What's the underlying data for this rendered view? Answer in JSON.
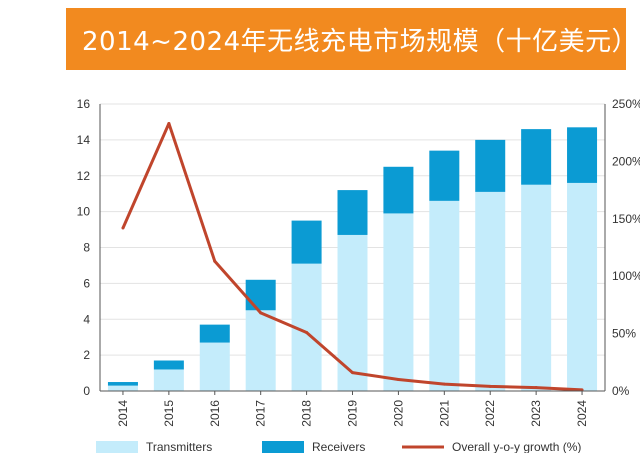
{
  "title": "2014~2024年无线充电市场规模（十亿美元）",
  "colors": {
    "banner": "#f28a1f",
    "transmitters": "#c4ecfb",
    "receivers": "#0b9bd3",
    "growth": "#c0452c"
  },
  "chart_data": {
    "type": "bar",
    "stacked": true,
    "title": "2014~2024年无线充电市场规模（十亿美元）",
    "categories": [
      "2014",
      "2015",
      "2016",
      "2017",
      "2018",
      "2019",
      "2020",
      "2021",
      "2022",
      "2023",
      "2024"
    ],
    "series": [
      {
        "name": "Transmitters",
        "kind": "bar",
        "axis": "left",
        "values": [
          0.3,
          1.2,
          2.7,
          4.5,
          7.1,
          8.7,
          9.9,
          10.6,
          11.1,
          11.5,
          11.6
        ]
      },
      {
        "name": "Receivers",
        "kind": "bar",
        "axis": "left",
        "values": [
          0.2,
          0.5,
          1.0,
          1.7,
          2.4,
          2.5,
          2.6,
          2.8,
          2.9,
          3.1,
          3.1
        ]
      },
      {
        "name": "Overall y-o-y growth (%)",
        "kind": "line",
        "axis": "right",
        "values": [
          142,
          233,
          113,
          68,
          51,
          16,
          10,
          6,
          4,
          3,
          1
        ]
      }
    ],
    "ylim_left": [
      0,
      16
    ],
    "yticks_left": [
      "0",
      "2",
      "4",
      "6",
      "8",
      "10",
      "12",
      "14",
      "16"
    ],
    "ylim_right": [
      0,
      250
    ],
    "yticks_right": [
      "0%",
      "50%",
      "100%",
      "150%",
      "200%",
      "250%"
    ],
    "grid": true,
    "legend_position": "bottom"
  }
}
